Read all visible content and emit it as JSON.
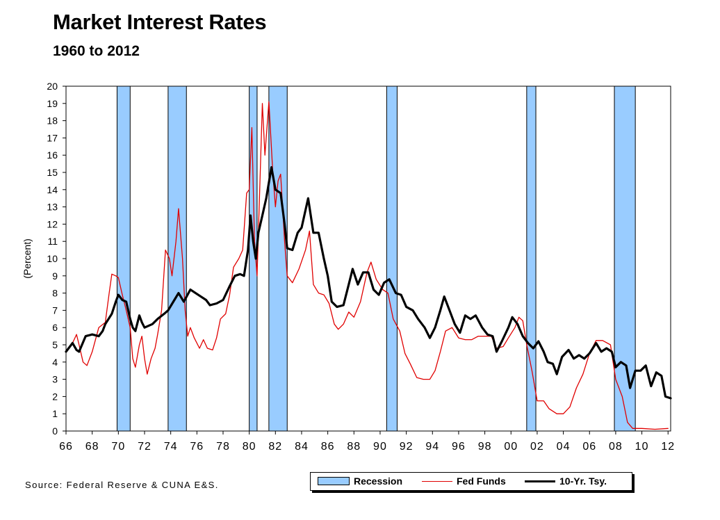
{
  "title": "Market Interest Rates",
  "subtitle": "1960 to 2012",
  "source": "Source: Federal Reserve & CUNA E&S.",
  "colors": {
    "recession": "#99ccff",
    "fed_funds": "#e00000",
    "treasury": "#000000"
  },
  "legend": {
    "recession": "Recession",
    "fed_funds": "Fed Funds",
    "treasury": "10-Yr. Tsy."
  },
  "chart_data": {
    "type": "line",
    "title": "Market Interest Rates",
    "subtitle": "1960 to 2012",
    "xlabel": "",
    "ylabel": "(Percent)",
    "xlim": [
      1966,
      2012.2
    ],
    "ylim": [
      0,
      20
    ],
    "x_ticks": [
      1966,
      1968,
      1970,
      1972,
      1974,
      1976,
      1978,
      1980,
      1982,
      1984,
      1986,
      1988,
      1990,
      1992,
      1994,
      1996,
      1998,
      2000,
      2002,
      2004,
      2006,
      2008,
      2010,
      2012
    ],
    "x_tick_labels": [
      "66",
      "68",
      "70",
      "72",
      "74",
      "76",
      "78",
      "80",
      "82",
      "84",
      "86",
      "88",
      "90",
      "92",
      "94",
      "96",
      "98",
      "00",
      "02",
      "04",
      "06",
      "08",
      "10",
      "12"
    ],
    "y_ticks": [
      0,
      1,
      2,
      3,
      4,
      5,
      6,
      7,
      8,
      9,
      10,
      11,
      12,
      13,
      14,
      15,
      16,
      17,
      18,
      19,
      20
    ],
    "grid": false,
    "legend_position": "bottom-right",
    "recessions": [
      [
        1969.9,
        1970.9
      ],
      [
        1973.8,
        1975.2
      ],
      [
        1980.0,
        1980.6
      ],
      [
        1981.5,
        1982.9
      ],
      [
        1990.5,
        1991.3
      ],
      [
        2001.2,
        2001.9
      ],
      [
        2007.9,
        2009.5
      ]
    ],
    "series": [
      {
        "name": "Fed Funds",
        "points": [
          [
            1966.0,
            4.6
          ],
          [
            1966.5,
            5.1
          ],
          [
            1966.8,
            5.6
          ],
          [
            1967.0,
            5.0
          ],
          [
            1967.3,
            4.0
          ],
          [
            1967.6,
            3.8
          ],
          [
            1968.0,
            4.6
          ],
          [
            1968.5,
            6.0
          ],
          [
            1969.0,
            6.3
          ],
          [
            1969.3,
            8.0
          ],
          [
            1969.5,
            9.1
          ],
          [
            1969.8,
            9.0
          ],
          [
            1970.0,
            8.9
          ],
          [
            1970.3,
            7.9
          ],
          [
            1970.6,
            7.0
          ],
          [
            1970.9,
            6.0
          ],
          [
            1971.1,
            4.2
          ],
          [
            1971.3,
            3.7
          ],
          [
            1971.6,
            5.0
          ],
          [
            1971.8,
            5.5
          ],
          [
            1972.0,
            4.2
          ],
          [
            1972.2,
            3.3
          ],
          [
            1972.5,
            4.2
          ],
          [
            1972.8,
            4.8
          ],
          [
            1973.0,
            5.6
          ],
          [
            1973.3,
            7.0
          ],
          [
            1973.6,
            10.5
          ],
          [
            1973.9,
            10.0
          ],
          [
            1974.1,
            9.0
          ],
          [
            1974.4,
            11.0
          ],
          [
            1974.6,
            12.9
          ],
          [
            1974.9,
            10.0
          ],
          [
            1975.1,
            7.0
          ],
          [
            1975.3,
            5.5
          ],
          [
            1975.5,
            6.0
          ],
          [
            1975.8,
            5.4
          ],
          [
            1976.2,
            4.8
          ],
          [
            1976.5,
            5.3
          ],
          [
            1976.8,
            4.8
          ],
          [
            1977.2,
            4.7
          ],
          [
            1977.5,
            5.4
          ],
          [
            1977.8,
            6.5
          ],
          [
            1978.2,
            6.8
          ],
          [
            1978.5,
            7.9
          ],
          [
            1978.8,
            9.5
          ],
          [
            1979.2,
            10.0
          ],
          [
            1979.5,
            10.5
          ],
          [
            1979.8,
            13.8
          ],
          [
            1980.0,
            14.0
          ],
          [
            1980.2,
            17.6
          ],
          [
            1980.4,
            11.0
          ],
          [
            1980.6,
            9.0
          ],
          [
            1980.8,
            14.0
          ],
          [
            1981.0,
            19.0
          ],
          [
            1981.2,
            16.0
          ],
          [
            1981.5,
            19.1
          ],
          [
            1981.8,
            15.0
          ],
          [
            1982.0,
            13.0
          ],
          [
            1982.2,
            14.5
          ],
          [
            1982.4,
            14.9
          ],
          [
            1982.7,
            11.0
          ],
          [
            1982.9,
            9.0
          ],
          [
            1983.3,
            8.6
          ],
          [
            1983.8,
            9.4
          ],
          [
            1984.3,
            10.5
          ],
          [
            1984.6,
            11.6
          ],
          [
            1984.9,
            8.5
          ],
          [
            1985.3,
            8.0
          ],
          [
            1985.7,
            7.9
          ],
          [
            1986.1,
            7.4
          ],
          [
            1986.5,
            6.2
          ],
          [
            1986.8,
            5.9
          ],
          [
            1987.2,
            6.2
          ],
          [
            1987.6,
            6.9
          ],
          [
            1988.0,
            6.6
          ],
          [
            1988.5,
            7.5
          ],
          [
            1989.0,
            9.2
          ],
          [
            1989.3,
            9.8
          ],
          [
            1989.7,
            8.8
          ],
          [
            1990.2,
            8.2
          ],
          [
            1990.6,
            8.0
          ],
          [
            1991.0,
            6.5
          ],
          [
            1991.5,
            5.8
          ],
          [
            1991.9,
            4.5
          ],
          [
            1992.3,
            3.9
          ],
          [
            1992.8,
            3.1
          ],
          [
            1993.3,
            3.0
          ],
          [
            1993.8,
            3.0
          ],
          [
            1994.2,
            3.5
          ],
          [
            1994.6,
            4.6
          ],
          [
            1995.0,
            5.8
          ],
          [
            1995.5,
            6.0
          ],
          [
            1996.0,
            5.4
          ],
          [
            1996.5,
            5.3
          ],
          [
            1997.0,
            5.3
          ],
          [
            1997.5,
            5.5
          ],
          [
            1998.0,
            5.5
          ],
          [
            1998.5,
            5.5
          ],
          [
            1998.9,
            4.8
          ],
          [
            1999.4,
            4.9
          ],
          [
            1999.8,
            5.4
          ],
          [
            2000.3,
            6.0
          ],
          [
            2000.6,
            6.6
          ],
          [
            2000.9,
            6.4
          ],
          [
            2001.2,
            5.0
          ],
          [
            2001.6,
            3.5
          ],
          [
            2002.0,
            1.75
          ],
          [
            2002.5,
            1.75
          ],
          [
            2002.9,
            1.3
          ],
          [
            2003.5,
            1.0
          ],
          [
            2004.0,
            1.0
          ],
          [
            2004.5,
            1.4
          ],
          [
            2005.0,
            2.5
          ],
          [
            2005.5,
            3.3
          ],
          [
            2006.0,
            4.5
          ],
          [
            2006.5,
            5.25
          ],
          [
            2007.0,
            5.25
          ],
          [
            2007.6,
            5.0
          ],
          [
            2008.0,
            3.0
          ],
          [
            2008.5,
            2.0
          ],
          [
            2008.9,
            0.5
          ],
          [
            2009.3,
            0.15
          ],
          [
            2010.0,
            0.15
          ],
          [
            2011.0,
            0.1
          ],
          [
            2012.0,
            0.15
          ]
        ]
      },
      {
        "name": "10-Yr. Tsy.",
        "points": [
          [
            1966.0,
            4.6
          ],
          [
            1966.5,
            5.1
          ],
          [
            1966.8,
            4.7
          ],
          [
            1967.0,
            4.6
          ],
          [
            1967.5,
            5.5
          ],
          [
            1968.0,
            5.6
          ],
          [
            1968.5,
            5.5
          ],
          [
            1968.8,
            5.8
          ],
          [
            1969.0,
            6.2
          ],
          [
            1969.5,
            6.8
          ],
          [
            1969.8,
            7.5
          ],
          [
            1970.0,
            7.9
          ],
          [
            1970.3,
            7.6
          ],
          [
            1970.6,
            7.5
          ],
          [
            1970.9,
            6.5
          ],
          [
            1971.1,
            6.0
          ],
          [
            1971.3,
            5.8
          ],
          [
            1971.6,
            6.7
          ],
          [
            1971.8,
            6.3
          ],
          [
            1972.0,
            6.0
          ],
          [
            1972.6,
            6.2
          ],
          [
            1973.0,
            6.5
          ],
          [
            1973.5,
            6.8
          ],
          [
            1973.8,
            7.0
          ],
          [
            1974.2,
            7.5
          ],
          [
            1974.6,
            8.0
          ],
          [
            1975.0,
            7.5
          ],
          [
            1975.5,
            8.2
          ],
          [
            1975.9,
            8.0
          ],
          [
            1976.3,
            7.8
          ],
          [
            1976.7,
            7.6
          ],
          [
            1977.0,
            7.3
          ],
          [
            1977.5,
            7.4
          ],
          [
            1978.0,
            7.6
          ],
          [
            1978.5,
            8.4
          ],
          [
            1978.9,
            9.0
          ],
          [
            1979.3,
            9.1
          ],
          [
            1979.6,
            9.0
          ],
          [
            1979.9,
            10.5
          ],
          [
            1980.1,
            12.5
          ],
          [
            1980.3,
            11.0
          ],
          [
            1980.5,
            10.0
          ],
          [
            1980.7,
            11.5
          ],
          [
            1981.0,
            12.5
          ],
          [
            1981.3,
            13.5
          ],
          [
            1981.7,
            15.3
          ],
          [
            1982.0,
            14.0
          ],
          [
            1982.4,
            13.8
          ],
          [
            1982.7,
            12.0
          ],
          [
            1982.9,
            10.6
          ],
          [
            1983.3,
            10.5
          ],
          [
            1983.7,
            11.5
          ],
          [
            1984.0,
            11.8
          ],
          [
            1984.5,
            13.5
          ],
          [
            1984.9,
            11.5
          ],
          [
            1985.3,
            11.5
          ],
          [
            1985.7,
            10.0
          ],
          [
            1986.0,
            9.0
          ],
          [
            1986.3,
            7.5
          ],
          [
            1986.7,
            7.2
          ],
          [
            1987.2,
            7.3
          ],
          [
            1987.6,
            8.5
          ],
          [
            1987.9,
            9.4
          ],
          [
            1988.3,
            8.5
          ],
          [
            1988.7,
            9.2
          ],
          [
            1989.1,
            9.2
          ],
          [
            1989.5,
            8.2
          ],
          [
            1989.9,
            7.9
          ],
          [
            1990.3,
            8.6
          ],
          [
            1990.7,
            8.8
          ],
          [
            1991.2,
            8.0
          ],
          [
            1991.6,
            7.9
          ],
          [
            1992.0,
            7.2
          ],
          [
            1992.5,
            7.0
          ],
          [
            1992.9,
            6.5
          ],
          [
            1993.4,
            6.0
          ],
          [
            1993.8,
            5.4
          ],
          [
            1994.2,
            6.0
          ],
          [
            1994.6,
            7.0
          ],
          [
            1994.9,
            7.8
          ],
          [
            1995.3,
            7.0
          ],
          [
            1995.7,
            6.2
          ],
          [
            1996.1,
            5.7
          ],
          [
            1996.5,
            6.7
          ],
          [
            1996.9,
            6.5
          ],
          [
            1997.3,
            6.7
          ],
          [
            1997.8,
            6.0
          ],
          [
            1998.2,
            5.6
          ],
          [
            1998.6,
            5.5
          ],
          [
            1998.9,
            4.6
          ],
          [
            1999.3,
            5.2
          ],
          [
            1999.8,
            6.0
          ],
          [
            2000.1,
            6.6
          ],
          [
            2000.5,
            6.2
          ],
          [
            2000.9,
            5.5
          ],
          [
            2001.3,
            5.1
          ],
          [
            2001.7,
            4.8
          ],
          [
            2002.1,
            5.2
          ],
          [
            2002.5,
            4.6
          ],
          [
            2002.8,
            4.0
          ],
          [
            2003.2,
            3.9
          ],
          [
            2003.5,
            3.3
          ],
          [
            2003.9,
            4.3
          ],
          [
            2004.4,
            4.7
          ],
          [
            2004.8,
            4.2
          ],
          [
            2005.2,
            4.4
          ],
          [
            2005.6,
            4.2
          ],
          [
            2006.0,
            4.5
          ],
          [
            2006.5,
            5.1
          ],
          [
            2006.9,
            4.6
          ],
          [
            2007.3,
            4.8
          ],
          [
            2007.7,
            4.6
          ],
          [
            2008.0,
            3.7
          ],
          [
            2008.4,
            4.0
          ],
          [
            2008.8,
            3.8
          ],
          [
            2009.1,
            2.5
          ],
          [
            2009.5,
            3.5
          ],
          [
            2009.9,
            3.5
          ],
          [
            2010.3,
            3.8
          ],
          [
            2010.7,
            2.6
          ],
          [
            2011.1,
            3.4
          ],
          [
            2011.5,
            3.2
          ],
          [
            2011.8,
            2.0
          ],
          [
            2012.2,
            1.9
          ]
        ]
      }
    ]
  }
}
